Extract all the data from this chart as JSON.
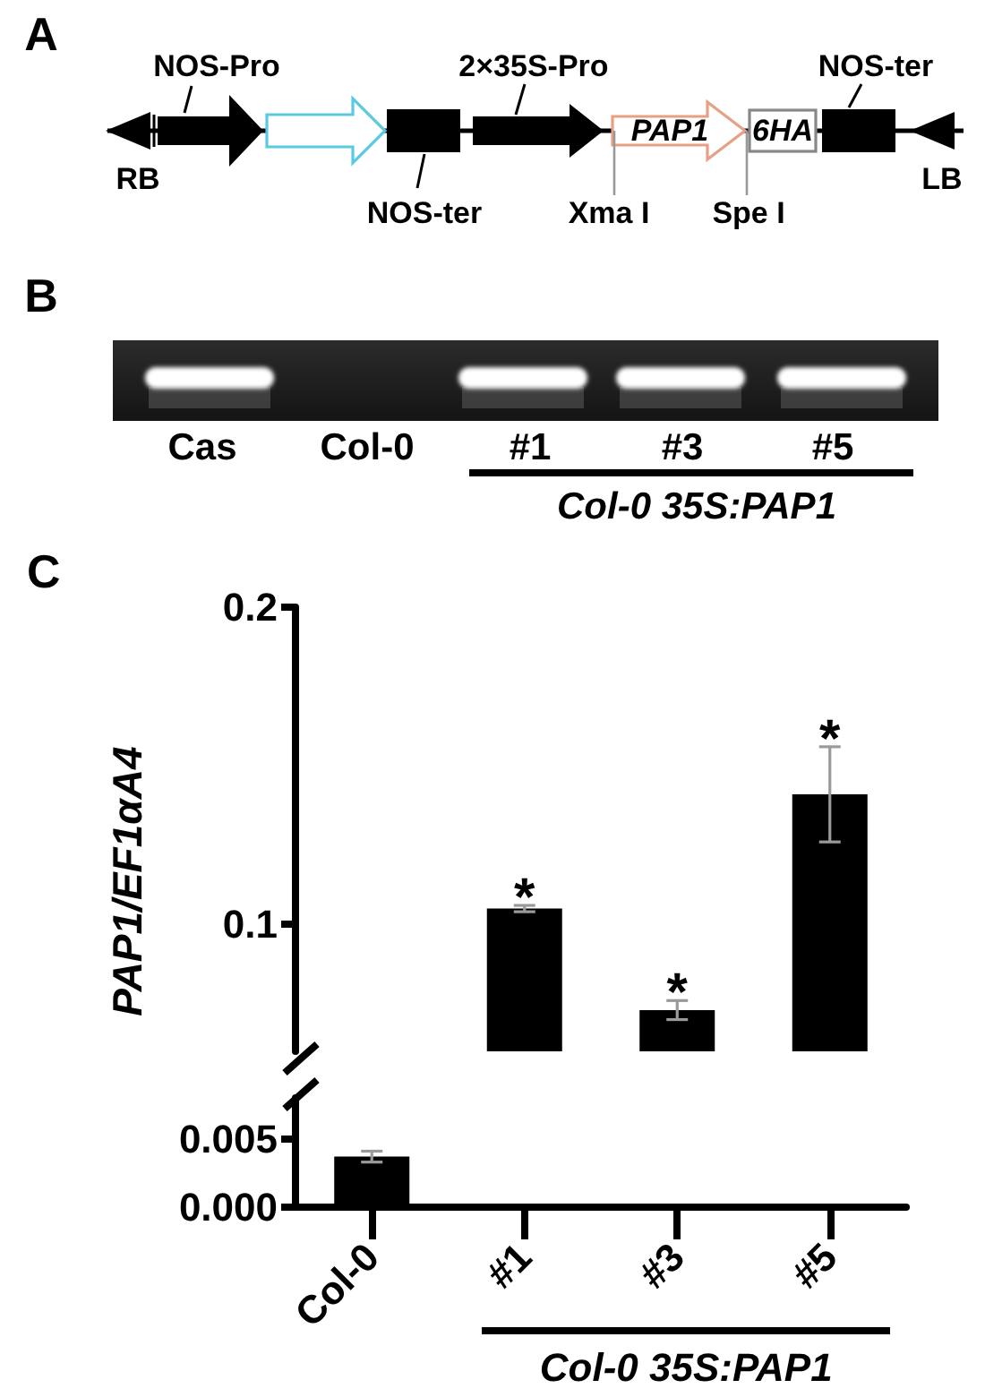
{
  "chart_data": [
    {
      "type": "other",
      "title": "A",
      "annotations": [
        "NOS-Pro",
        "2×35S-Pro",
        "NOS-ter",
        "RB",
        "NOS-ter",
        "Xma I",
        "Spe I",
        "LB",
        "PAP1",
        "6HA"
      ]
    },
    {
      "type": "other",
      "title": "B",
      "categories": [
        "Cas",
        "Col-0",
        "#1",
        "#3",
        "#5"
      ],
      "annotations": [
        "Col-0 35S:PAP1"
      ]
    },
    {
      "type": "bar",
      "title": "C",
      "ylabel": "PAP1/EF1αA4",
      "categories": [
        "Col-0",
        "#1",
        "#3",
        "#5"
      ],
      "values": [
        null,
        0.105,
        0.073,
        0.141
      ],
      "errors": [
        null,
        0.001,
        0.003,
        0.015
      ],
      "color": "#000000",
      "ylim": [
        0.06,
        0.2
      ],
      "yticks": [
        0.1,
        0.2
      ],
      "tick_labels": "y",
      "annotations": [
        {
          "text": "*",
          "x": "#1",
          "y": 0.105
        },
        {
          "text": "*",
          "x": "#3",
          "y": 0.073
        },
        {
          "text": "*",
          "x": "#5",
          "y": 0.141
        }
      ]
    },
    {
      "type": "bar",
      "categories": [
        "Col-0",
        "#1",
        "#3",
        "#5"
      ],
      "values": [
        0.0037,
        null,
        null,
        null
      ],
      "errors": [
        0.0004,
        null,
        null,
        null
      ],
      "color": "#000000",
      "ylim": [
        0,
        0.008
      ],
      "yticks": [
        {
          "value": 0,
          "label": "0.000"
        },
        {
          "value": 0.005,
          "label": "0.005"
        }
      ],
      "annotations": [
        "Col-0 35S:PAP1"
      ]
    }
  ]
}
